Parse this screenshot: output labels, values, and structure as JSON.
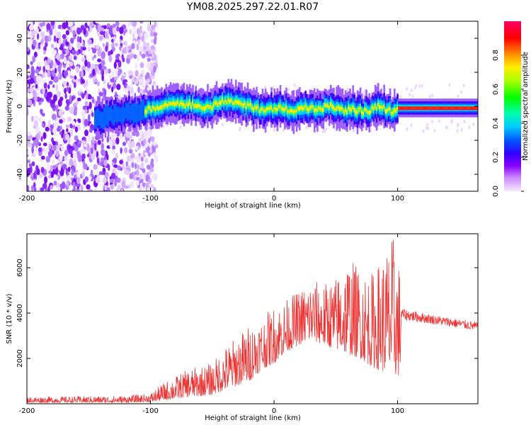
{
  "title": "YM08.2025.297.22.01.R07",
  "chart_data": [
    {
      "type": "heatmap",
      "name": "spectrogram",
      "xlabel": "Height of straight line (km)",
      "ylabel": "Frequency (Hz)",
      "xlim": [
        -200,
        165
      ],
      "ylim": [
        -50,
        50
      ],
      "xticks": [
        -200,
        -100,
        0,
        100
      ],
      "yticks": [
        -40,
        -20,
        0,
        20,
        40
      ],
      "colorbar": {
        "label": "Normalized spectral amplitude",
        "range": [
          0,
          1
        ],
        "ticks": [
          0.0,
          0.2,
          0.4,
          0.6,
          0.8
        ],
        "tick_labels": [
          "0.0",
          "0.2",
          "0.4",
          "0.6",
          "0.8"
        ]
      },
      "ridge": [
        {
          "x": -145,
          "y": -8
        },
        {
          "x": -130,
          "y": -5
        },
        {
          "x": -110,
          "y": -3
        },
        {
          "x": -100,
          "y": -2
        },
        {
          "x": -90,
          "y": 1
        },
        {
          "x": -80,
          "y": 2
        },
        {
          "x": -70,
          "y": 1
        },
        {
          "x": -60,
          "y": 0
        },
        {
          "x": -50,
          "y": 0
        },
        {
          "x": -40,
          "y": 3
        },
        {
          "x": -30,
          "y": 2
        },
        {
          "x": -20,
          "y": 0
        },
        {
          "x": -10,
          "y": -2
        },
        {
          "x": 0,
          "y": -2
        },
        {
          "x": 5,
          "y": 0
        },
        {
          "x": 15,
          "y": -3
        },
        {
          "x": 25,
          "y": -1
        },
        {
          "x": 35,
          "y": -2
        },
        {
          "x": 45,
          "y": 0
        },
        {
          "x": 55,
          "y": -2
        },
        {
          "x": 65,
          "y": -2
        },
        {
          "x": 75,
          "y": -3
        },
        {
          "x": 85,
          "y": 0
        },
        {
          "x": 95,
          "y": -3
        },
        {
          "x": 100,
          "y": -1
        },
        {
          "x": 110,
          "y": -1
        },
        {
          "x": 130,
          "y": -1
        },
        {
          "x": 150,
          "y": -1
        },
        {
          "x": 165,
          "y": -1
        }
      ],
      "noise_region_x": [
        -200,
        -95
      ]
    },
    {
      "type": "line",
      "name": "snr",
      "xlabel": "Height of straight line (km)",
      "ylabel": "SNR (10 * v/v)",
      "xlim": [
        -200,
        165
      ],
      "ylim": [
        0,
        7500
      ],
      "xticks": [
        -200,
        -100,
        0,
        100
      ],
      "yticks": [
        2000,
        4000,
        6000
      ],
      "color": "#ee3333",
      "envelope": [
        {
          "x": -200,
          "low": 50,
          "high": 300
        },
        {
          "x": -120,
          "low": 50,
          "high": 350
        },
        {
          "x": -100,
          "low": 80,
          "high": 450
        },
        {
          "x": -90,
          "low": 150,
          "high": 900
        },
        {
          "x": -70,
          "low": 300,
          "high": 1500
        },
        {
          "x": -50,
          "low": 400,
          "high": 1800
        },
        {
          "x": -40,
          "low": 600,
          "high": 2500
        },
        {
          "x": -30,
          "low": 800,
          "high": 3000
        },
        {
          "x": -20,
          "low": 1000,
          "high": 3500
        },
        {
          "x": -10,
          "low": 1500,
          "high": 3800
        },
        {
          "x": 0,
          "low": 1800,
          "high": 4300
        },
        {
          "x": 10,
          "low": 2300,
          "high": 4600
        },
        {
          "x": 20,
          "low": 2600,
          "high": 5000
        },
        {
          "x": 30,
          "low": 2800,
          "high": 5500
        },
        {
          "x": 40,
          "low": 2600,
          "high": 5300
        },
        {
          "x": 50,
          "low": 2400,
          "high": 5600
        },
        {
          "x": 60,
          "low": 2200,
          "high": 6500
        },
        {
          "x": 70,
          "low": 2000,
          "high": 6000
        },
        {
          "x": 80,
          "low": 1600,
          "high": 5800
        },
        {
          "x": 90,
          "low": 1400,
          "high": 6800
        },
        {
          "x": 97,
          "low": 1300,
          "high": 7500
        },
        {
          "x": 102,
          "low": 1200,
          "high": 6000
        },
        {
          "x": 103,
          "low": 3700,
          "high": 4200
        },
        {
          "x": 130,
          "low": 3500,
          "high": 3900
        },
        {
          "x": 165,
          "low": 3200,
          "high": 3600
        }
      ]
    }
  ]
}
